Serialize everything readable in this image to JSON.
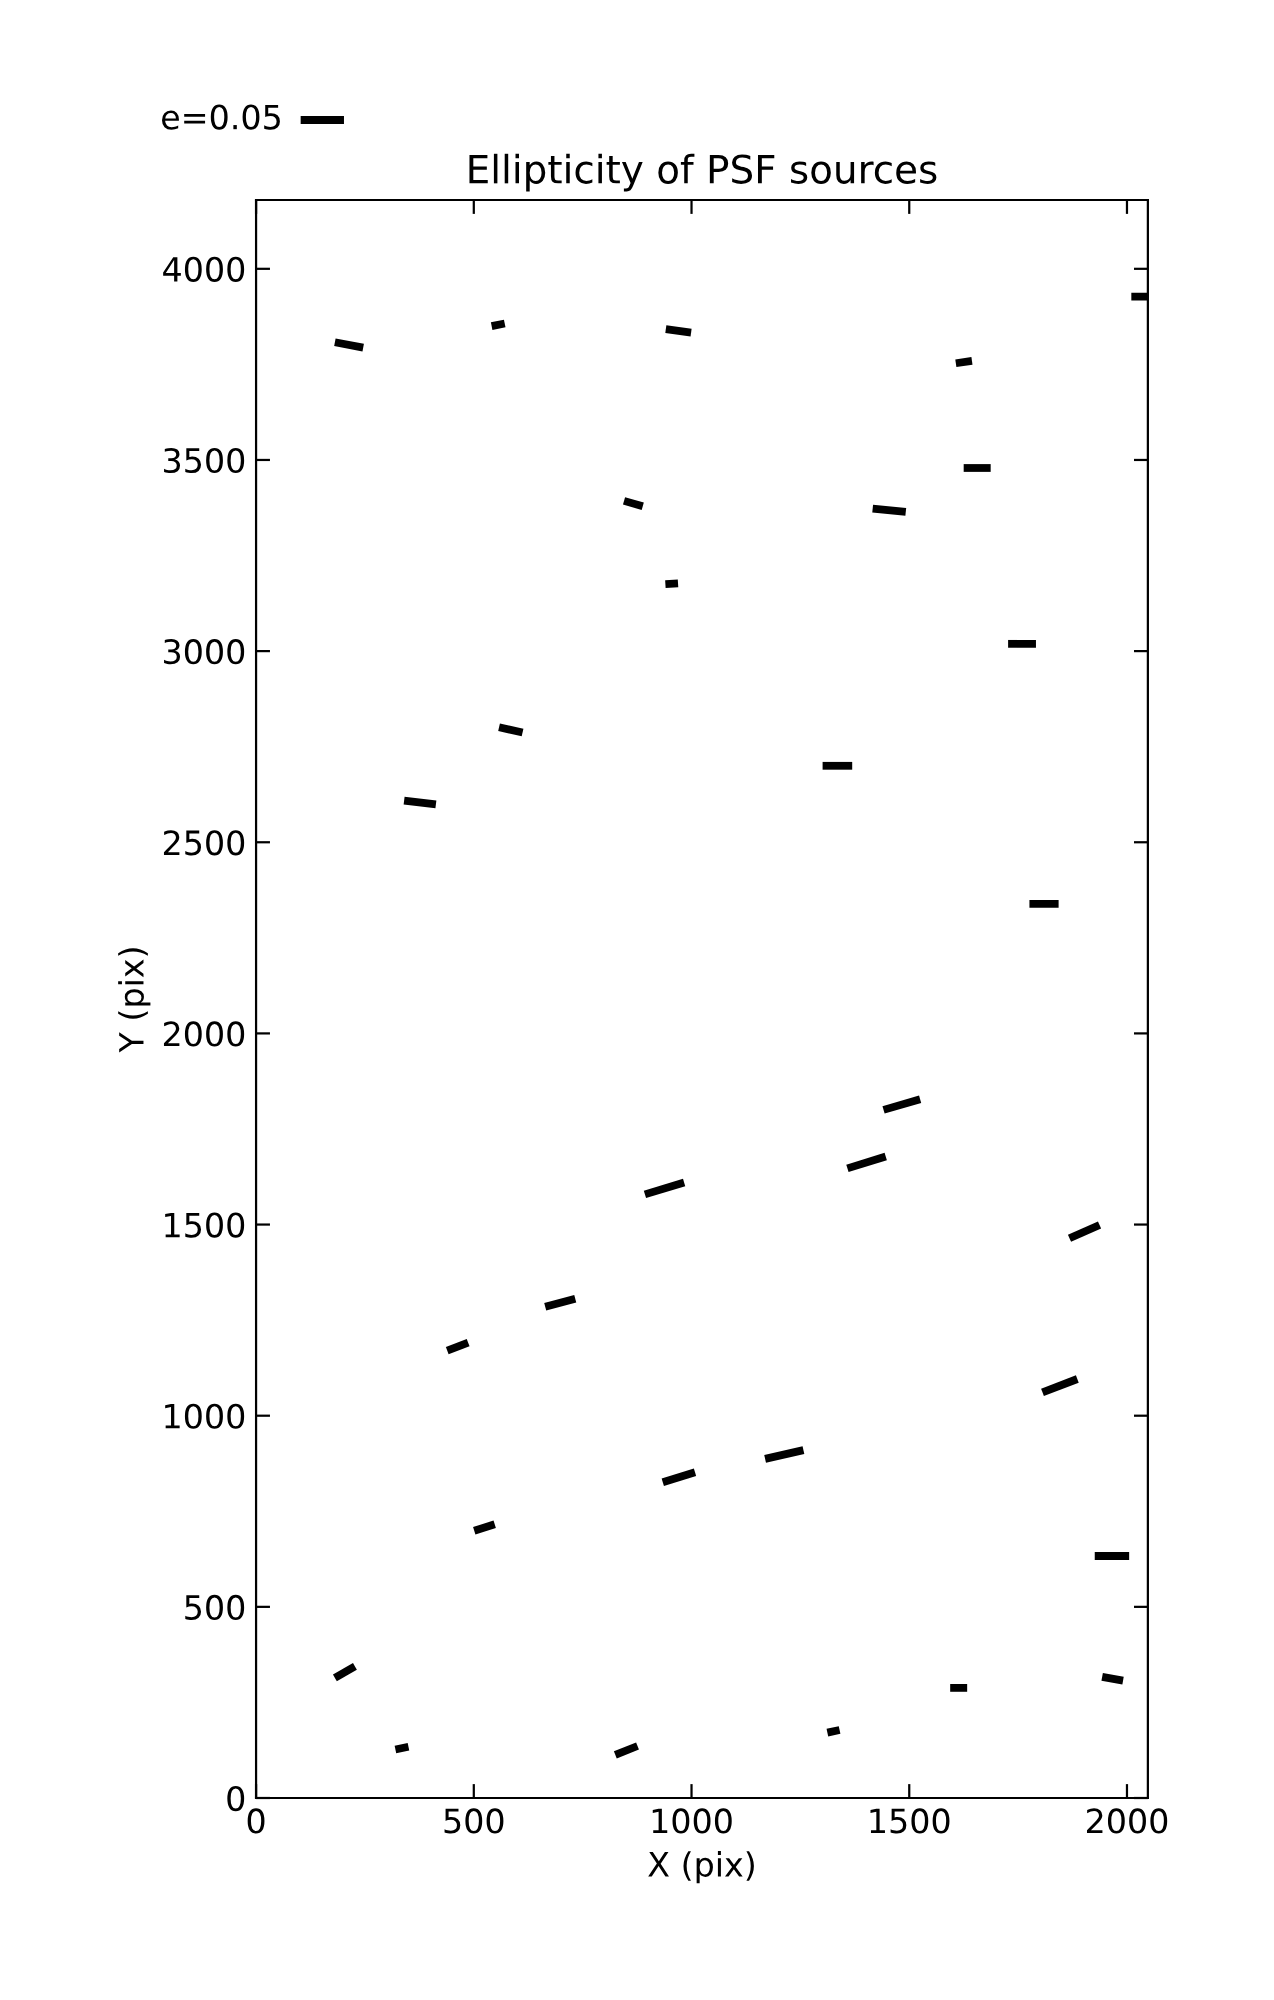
{
  "chart_data": {
    "type": "line",
    "title": "Ellipticity of PSF sources",
    "xlabel": "X (pix)",
    "ylabel": "Y (pix)",
    "xlim": [
      0,
      2048
    ],
    "ylim": [
      0,
      4180
    ],
    "xticks": [
      0,
      500,
      1000,
      1500,
      2000
    ],
    "yticks": [
      0,
      500,
      1000,
      1500,
      2000,
      2500,
      3000,
      3500,
      4000
    ],
    "grid": false,
    "annotations": [
      "e=0.05"
    ],
    "series": [
      {
        "type": "line",
        "color": "#000000",
        "x": [
          181,
          246
        ],
        "values": [
          3808,
          3794
        ]
      },
      {
        "type": "line",
        "color": "#000000",
        "x": [
          541,
          571
        ],
        "values": [
          3850,
          3857
        ]
      },
      {
        "type": "line",
        "color": "#000000",
        "x": [
          941,
          999
        ],
        "values": [
          3842,
          3833
        ]
      },
      {
        "type": "line",
        "color": "#000000",
        "x": [
          1607,
          1644
        ],
        "values": [
          3753,
          3759
        ]
      },
      {
        "type": "line",
        "color": "#000000",
        "x": [
          2010,
          2048
        ],
        "values": [
          3927,
          3927
        ]
      },
      {
        "type": "line",
        "color": "#000000",
        "x": [
          845,
          888
        ],
        "values": [
          3393,
          3379
        ]
      },
      {
        "type": "line",
        "color": "#000000",
        "x": [
          1416,
          1492
        ],
        "values": [
          3373,
          3364
        ]
      },
      {
        "type": "line",
        "color": "#000000",
        "x": [
          1625,
          1687
        ],
        "values": [
          3479,
          3479
        ]
      },
      {
        "type": "line",
        "color": "#000000",
        "x": [
          940,
          969
        ],
        "values": [
          3175,
          3177
        ]
      },
      {
        "type": "line",
        "color": "#000000",
        "x": [
          1727,
          1791
        ],
        "values": [
          3019,
          3019
        ]
      },
      {
        "type": "line",
        "color": "#000000",
        "x": [
          558,
          612
        ],
        "values": [
          2801,
          2787
        ]
      },
      {
        "type": "line",
        "color": "#000000",
        "x": [
          340,
          413
        ],
        "values": [
          2609,
          2599
        ]
      },
      {
        "type": "line",
        "color": "#000000",
        "x": [
          1301,
          1369
        ],
        "values": [
          2700,
          2700
        ]
      },
      {
        "type": "line",
        "color": "#000000",
        "x": [
          1776,
          1843
        ],
        "values": [
          2339,
          2339
        ]
      },
      {
        "type": "line",
        "color": "#000000",
        "x": [
          1441,
          1525
        ],
        "values": [
          1800,
          1828
        ]
      },
      {
        "type": "line",
        "color": "#000000",
        "x": [
          1358,
          1446
        ],
        "values": [
          1647,
          1678
        ]
      },
      {
        "type": "line",
        "color": "#000000",
        "x": [
          893,
          983
        ],
        "values": [
          1579,
          1610
        ]
      },
      {
        "type": "line",
        "color": "#000000",
        "x": [
          1868,
          1937
        ],
        "values": [
          1464,
          1499
        ]
      },
      {
        "type": "line",
        "color": "#000000",
        "x": [
          664,
          733
        ],
        "values": [
          1285,
          1306
        ]
      },
      {
        "type": "line",
        "color": "#000000",
        "x": [
          439,
          487
        ],
        "values": [
          1170,
          1191
        ]
      },
      {
        "type": "line",
        "color": "#000000",
        "x": [
          1806,
          1886
        ],
        "values": [
          1061,
          1096
        ]
      },
      {
        "type": "line",
        "color": "#000000",
        "x": [
          934,
          1008
        ],
        "values": [
          826,
          852
        ]
      },
      {
        "type": "line",
        "color": "#000000",
        "x": [
          1169,
          1257
        ],
        "values": [
          887,
          910
        ]
      },
      {
        "type": "line",
        "color": "#000000",
        "x": [
          501,
          548
        ],
        "values": [
          699,
          716
        ]
      },
      {
        "type": "line",
        "color": "#000000",
        "x": [
          1926,
          2005
        ],
        "values": [
          633,
          633
        ]
      },
      {
        "type": "line",
        "color": "#000000",
        "x": [
          181,
          227
        ],
        "values": [
          314,
          344
        ]
      },
      {
        "type": "line",
        "color": "#000000",
        "x": [
          320,
          350
        ],
        "values": [
          127,
          134
        ]
      },
      {
        "type": "line",
        "color": "#000000",
        "x": [
          825,
          876
        ],
        "values": [
          113,
          136
        ]
      },
      {
        "type": "line",
        "color": "#000000",
        "x": [
          1312,
          1340
        ],
        "values": [
          171,
          178
        ]
      },
      {
        "type": "line",
        "color": "#000000",
        "x": [
          1594,
          1633
        ],
        "values": [
          288,
          288
        ]
      },
      {
        "type": "line",
        "color": "#000000",
        "x": [
          1943,
          1991
        ],
        "values": [
          317,
          307
        ]
      }
    ]
  }
}
